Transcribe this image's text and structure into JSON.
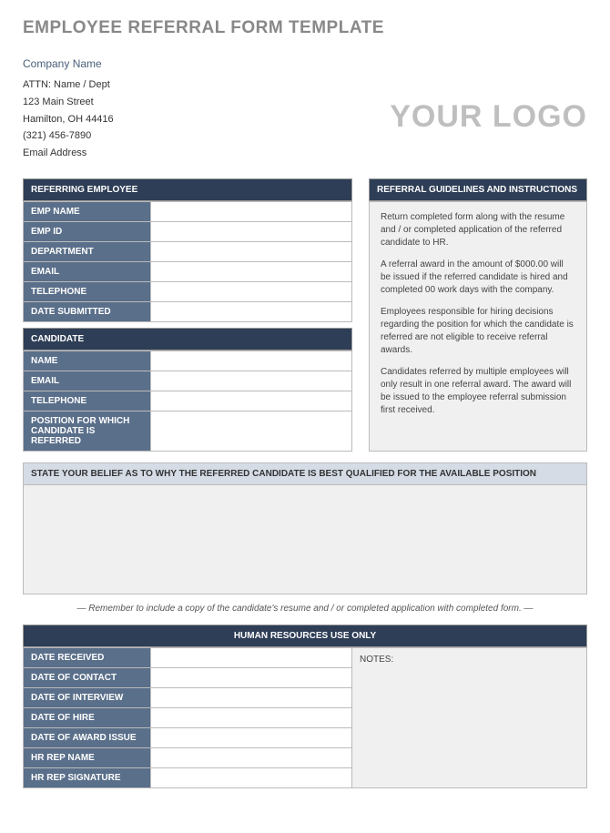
{
  "page_title": "EMPLOYEE REFERRAL FORM TEMPLATE",
  "company": {
    "name": "Company Name",
    "attn": "ATTN: Name / Dept",
    "street": "123 Main Street",
    "city_state_zip": "Hamilton, OH  44416",
    "phone": "(321) 456-7890",
    "email": "Email Address"
  },
  "logo_text": "YOUR LOGO",
  "sections": {
    "referring_employee": {
      "header": "REFERRING EMPLOYEE",
      "fields": [
        {
          "label": "EMP NAME",
          "value": ""
        },
        {
          "label": "EMP ID",
          "value": ""
        },
        {
          "label": "DEPARTMENT",
          "value": ""
        },
        {
          "label": "EMAIL",
          "value": ""
        },
        {
          "label": "TELEPHONE",
          "value": ""
        },
        {
          "label": "DATE SUBMITTED",
          "value": ""
        }
      ]
    },
    "candidate": {
      "header": "CANDIDATE",
      "fields": [
        {
          "label": "NAME",
          "value": ""
        },
        {
          "label": "EMAIL",
          "value": ""
        },
        {
          "label": "TELEPHONE",
          "value": ""
        },
        {
          "label": "POSITION FOR WHICH CANDIDATE IS REFERRED",
          "value": ""
        }
      ]
    },
    "guidelines": {
      "header": "REFERRAL GUIDELINES AND INSTRUCTIONS",
      "paragraphs": [
        "Return completed form along with the resume and / or completed application of the referred candidate to HR.",
        "A referral award in the amount of $000.00 will be issued if the referred candidate is hired and completed 00 work days with the company.",
        "Employees responsible for hiring decisions regarding the position for which the candidate is referred are not eligible to receive referral awards.",
        "Candidates referred by multiple employees will only result in one referral award.  The award will be issued to the employee referral submission first received."
      ]
    },
    "belief": {
      "header": "STATE YOUR BELIEF AS TO WHY THE REFERRED CANDIDATE IS BEST QUALIFIED FOR THE AVAILABLE POSITION"
    },
    "reminder": "— Remember to include a copy of the candidate's resume and / or completed application with completed form. —",
    "hr": {
      "header": "HUMAN RESOURCES USE ONLY",
      "fields": [
        {
          "label": "DATE RECEIVED",
          "value": ""
        },
        {
          "label": "DATE OF CONTACT",
          "value": ""
        },
        {
          "label": "DATE OF INTERVIEW",
          "value": ""
        },
        {
          "label": "DATE OF HIRE",
          "value": ""
        },
        {
          "label": "DATE OF AWARD ISSUE",
          "value": ""
        },
        {
          "label": "HR REP NAME",
          "value": ""
        },
        {
          "label": "HR REP SIGNATURE",
          "value": ""
        }
      ],
      "notes_label": "NOTES:"
    }
  },
  "colors": {
    "header_bg": "#2e3e56",
    "label_bg": "#5a6f8a",
    "light_bg": "#f0f0f0",
    "belief_header_bg": "#d5dce6",
    "title_color": "#888888",
    "logo_color": "#bfbfbf"
  }
}
